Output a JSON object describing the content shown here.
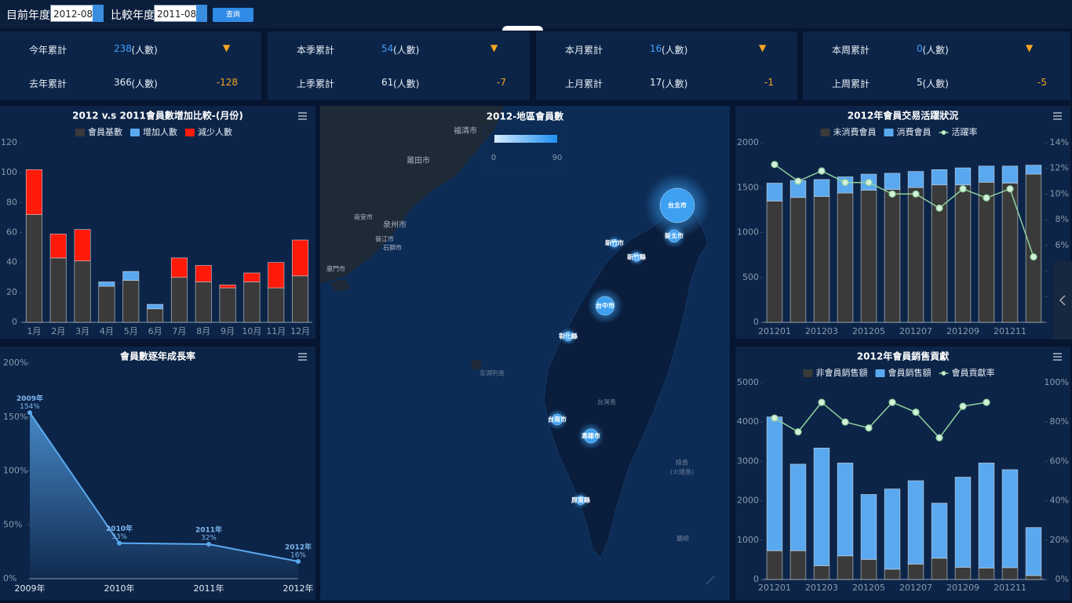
{
  "filters": {
    "current_label": "目前年度",
    "current_value": "2012-08",
    "compare_label": "比較年度",
    "compare_value": "2011-08",
    "button": "查詢"
  },
  "kpis": [
    {
      "label": "今年累計",
      "value": 238,
      "unit": "(人數)",
      "trend": "▼",
      "compare_label": "去年累計",
      "compare_value": 366,
      "compare_unit": "(人數)",
      "diff": -128
    },
    {
      "label": "本季累計",
      "value": 54,
      "unit": "(人數)",
      "trend": "▼",
      "compare_label": "上季累計",
      "compare_value": 61,
      "compare_unit": "(人數)",
      "diff": -7
    },
    {
      "label": "本月累計",
      "value": 16,
      "unit": "(人數)",
      "trend": "▼",
      "compare_label": "上月累計",
      "compare_value": 17,
      "compare_unit": "(人數)",
      "diff": -1
    },
    {
      "label": "本周累計",
      "value": 0,
      "unit": "(人數)",
      "trend": "▼",
      "compare_label": "上周累計",
      "compare_value": 5,
      "compare_unit": "(人數)",
      "diff": -5
    }
  ],
  "chart_data": [
    {
      "type": "bar",
      "stacked": true,
      "title": "2012 v.s 2011會員數增加比較-(月份)",
      "categories": [
        "1月",
        "2月",
        "3月",
        "4月",
        "5月",
        "6月",
        "7月",
        "8月",
        "9月",
        "10月",
        "11月",
        "12月"
      ],
      "series": [
        {
          "name": "會員基數",
          "color": "#3a3a3a",
          "values": [
            72,
            43,
            41,
            24,
            28,
            9,
            30,
            27,
            23,
            27,
            23,
            31
          ]
        },
        {
          "name": "增加人數",
          "color": "#5aa9f0",
          "values": [
            0,
            0,
            0,
            3,
            6,
            3,
            0,
            0,
            0,
            0,
            0,
            0
          ]
        },
        {
          "name": "減少人數",
          "color": "#ff1a0a",
          "values": [
            30,
            16,
            21,
            0,
            0,
            0,
            13,
            11,
            2,
            6,
            17,
            24
          ]
        }
      ],
      "ylim": [
        0,
        120
      ],
      "yticks": [
        0,
        20,
        40,
        60,
        80,
        100,
        120
      ]
    },
    {
      "type": "area",
      "title": "會員數逐年成長率",
      "categories": [
        "2009年",
        "2010年",
        "2011年",
        "2012年"
      ],
      "values": [
        154,
        33,
        32,
        16
      ],
      "value_labels": [
        "154%",
        "33%",
        "32%",
        "16%"
      ],
      "color": "#5aa9f0",
      "ylim": [
        0,
        200
      ],
      "yticks": [
        {
          "value": 0,
          "label": "0%"
        },
        {
          "value": 50,
          "label": "50%"
        },
        {
          "value": 100,
          "label": "100%"
        },
        {
          "value": 150,
          "label": "150%"
        },
        {
          "value": 200,
          "label": "200%"
        }
      ]
    },
    {
      "type": "map",
      "title": "2012-地區會員數",
      "visual_range": [
        0,
        90
      ],
      "points": [
        {
          "name": "台北市",
          "value": 90
        },
        {
          "name": "新北市",
          "value": 20
        },
        {
          "name": "新竹市",
          "value": 5
        },
        {
          "name": "新竹縣",
          "value": 8
        },
        {
          "name": "台中市",
          "value": 40
        },
        {
          "name": "彰化縣",
          "value": 10
        },
        {
          "name": "台南市",
          "value": 15
        },
        {
          "name": "高雄市",
          "value": 25
        },
        {
          "name": "屏東縣",
          "value": 8
        }
      ],
      "map_labels": [
        "莆田市",
        "福清市",
        "泉州市",
        "南安市",
        "晉江市",
        "石獅市",
        "廈門市",
        "澎湖列島",
        "台灣島",
        "綠島",
        "(火燒島)",
        "蘭嶼"
      ]
    },
    {
      "type": "bar",
      "stacked": true,
      "title": "2012年會員交易活躍狀況",
      "categories": [
        "201201",
        null,
        "201203",
        null,
        "201205",
        null,
        "201207",
        null,
        "201209",
        null,
        "201211",
        null
      ],
      "series": [
        {
          "name": "未消費會員",
          "color": "#3a3a3a",
          "values": [
            1350,
            1390,
            1400,
            1440,
            1470,
            1480,
            1500,
            1530,
            1530,
            1560,
            1550,
            1650
          ]
        },
        {
          "name": "消費會員",
          "color": "#5aa9f0",
          "values": [
            200,
            190,
            190,
            180,
            180,
            180,
            180,
            170,
            190,
            180,
            190,
            100
          ]
        },
        {
          "name": "活躍率",
          "type": "line",
          "axis": "y2",
          "color": "#8fd19e",
          "values": [
            12.3,
            11.0,
            11.8,
            10.9,
            10.9,
            10.0,
            10.0,
            8.9,
            10.4,
            9.7,
            10.4,
            5.1
          ]
        }
      ],
      "ylim": [
        0,
        2000
      ],
      "yticks": [
        0,
        500,
        1000,
        1500,
        2000
      ],
      "y2lim": [
        0,
        14
      ],
      "y2ticks": [
        {
          "value": 0,
          "label": "0%"
        },
        {
          "value": 2,
          "label": "2%"
        },
        {
          "value": 4,
          "label": "4%"
        },
        {
          "value": 6,
          "label": "6%"
        },
        {
          "value": 8,
          "label": "8%"
        },
        {
          "value": 10,
          "label": "10%"
        },
        {
          "value": 12,
          "label": "12%"
        },
        {
          "value": 14,
          "label": "14%"
        }
      ]
    },
    {
      "type": "bar",
      "stacked": true,
      "title": "2012年會員銷售貢獻",
      "categories": [
        "201201",
        null,
        "201203",
        null,
        "201205",
        null,
        "201207",
        null,
        "201209",
        null,
        "201211",
        null
      ],
      "series": [
        {
          "name": "非會員銷售額",
          "color": "#3a3a3a",
          "values": [
            730,
            730,
            350,
            600,
            510,
            260,
            390,
            540,
            310,
            290,
            300,
            100
          ]
        },
        {
          "name": "會員銷售額",
          "color": "#5aa9f0",
          "values": [
            3400,
            2200,
            2990,
            2360,
            1650,
            2040,
            2120,
            1400,
            2290,
            2670,
            2490,
            1220
          ]
        },
        {
          "name": "會員貢獻率",
          "type": "line",
          "axis": "y2",
          "color": "#8fd19e",
          "values": [
            82,
            75,
            90,
            80,
            77,
            90,
            85,
            72,
            88,
            90,
            null,
            null
          ]
        }
      ],
      "ylim": [
        0,
        5000
      ],
      "yticks": [
        0,
        1000,
        2000,
        3000,
        4000,
        5000
      ],
      "y2lim": [
        0,
        100
      ],
      "y2ticks": [
        {
          "value": 0,
          "label": "0%"
        },
        {
          "value": 20,
          "label": "20%"
        },
        {
          "value": 40,
          "label": "40%"
        },
        {
          "value": 60,
          "label": "60%"
        },
        {
          "value": 80,
          "label": "80%"
        },
        {
          "value": 100,
          "label": "100%"
        }
      ]
    }
  ]
}
